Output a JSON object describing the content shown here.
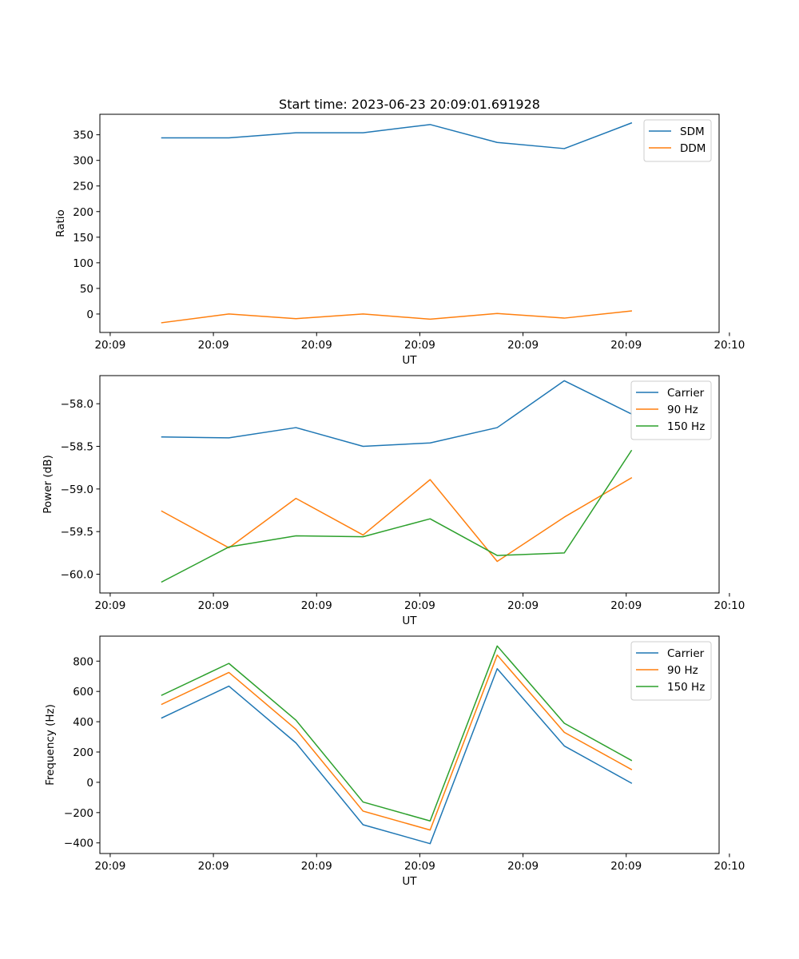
{
  "figure_title": "Start time: 2023-06-23 20:09:01.691928",
  "x_tick_labels": [
    "20:09",
    "20:09",
    "20:09",
    "20:09",
    "20:09",
    "20:09",
    "20:10"
  ],
  "chart_data": [
    {
      "type": "line",
      "title": "Start time: 2023-06-23 20:09:01.691928",
      "xlabel": "UT",
      "ylabel": "Ratio",
      "x": [
        0.5,
        1.15,
        1.8,
        2.45,
        3.1,
        3.75,
        4.4,
        5.05
      ],
      "xlim": [
        -0.1,
        5.9
      ],
      "x_ticks": [
        0,
        1,
        2,
        3,
        4,
        5,
        6
      ],
      "ylim": [
        -36,
        390
      ],
      "y_ticks": [
        0,
        50,
        100,
        150,
        200,
        250,
        300,
        350
      ],
      "y_tick_labels": [
        "0",
        "50",
        "100",
        "150",
        "200",
        "250",
        "300",
        "350"
      ],
      "legend_position": "upper-right",
      "grid": false,
      "series": [
        {
          "name": "SDM",
          "color": "#1f77b4",
          "values": [
            344,
            344,
            354,
            354,
            370,
            335,
            323,
            373
          ]
        },
        {
          "name": "DDM",
          "color": "#ff7f0e",
          "values": [
            -17,
            0,
            -9,
            0,
            -10,
            1,
            -8,
            6
          ]
        }
      ]
    },
    {
      "type": "line",
      "xlabel": "UT",
      "ylabel": "Power (dB)",
      "x": [
        0.5,
        1.15,
        1.8,
        2.45,
        3.1,
        3.75,
        4.4,
        5.05
      ],
      "xlim": [
        -0.1,
        5.9
      ],
      "x_ticks": [
        0,
        1,
        2,
        3,
        4,
        5,
        6
      ],
      "ylim": [
        -60.22,
        -57.67
      ],
      "y_ticks": [
        -60.0,
        -59.5,
        -59.0,
        -58.5,
        -58.0
      ],
      "y_tick_labels": [
        "−60.0",
        "−59.5",
        "−59.0",
        "−58.5",
        "−58.0"
      ],
      "legend_position": "upper-right",
      "grid": false,
      "series": [
        {
          "name": "Carrier",
          "color": "#1f77b4",
          "values": [
            -58.39,
            -58.4,
            -58.28,
            -58.5,
            -58.46,
            -58.28,
            -57.73,
            -58.12
          ]
        },
        {
          "name": "90 Hz",
          "color": "#ff7f0e",
          "values": [
            -59.26,
            -59.69,
            -59.11,
            -59.54,
            -58.89,
            -59.85,
            -59.33,
            -58.87
          ]
        },
        {
          "name": "150 Hz",
          "color": "#2ca02c",
          "values": [
            -60.09,
            -59.68,
            -59.55,
            -59.56,
            -59.35,
            -59.78,
            -59.75,
            -58.55
          ]
        }
      ]
    },
    {
      "type": "line",
      "xlabel": "UT",
      "ylabel": "Frequency (Hz)",
      "x": [
        0.5,
        1.15,
        1.8,
        2.45,
        3.1,
        3.75,
        4.4,
        5.05
      ],
      "xlim": [
        -0.1,
        5.9
      ],
      "x_ticks": [
        0,
        1,
        2,
        3,
        4,
        5,
        6
      ],
      "ylim": [
        -470,
        965
      ],
      "y_ticks": [
        -400,
        -200,
        0,
        200,
        400,
        600,
        800
      ],
      "y_tick_labels": [
        "−400",
        "−200",
        "0",
        "200",
        "400",
        "600",
        "800"
      ],
      "legend_position": "upper-right",
      "grid": false,
      "series": [
        {
          "name": "Carrier",
          "color": "#1f77b4",
          "values": [
            425,
            635,
            260,
            -280,
            -405,
            750,
            240,
            -5
          ]
        },
        {
          "name": "90 Hz",
          "color": "#ff7f0e",
          "values": [
            515,
            725,
            350,
            -190,
            -315,
            840,
            330,
            85
          ]
        },
        {
          "name": "150 Hz",
          "color": "#2ca02c",
          "values": [
            575,
            785,
            410,
            -130,
            -255,
            900,
            390,
            145
          ]
        }
      ]
    }
  ]
}
